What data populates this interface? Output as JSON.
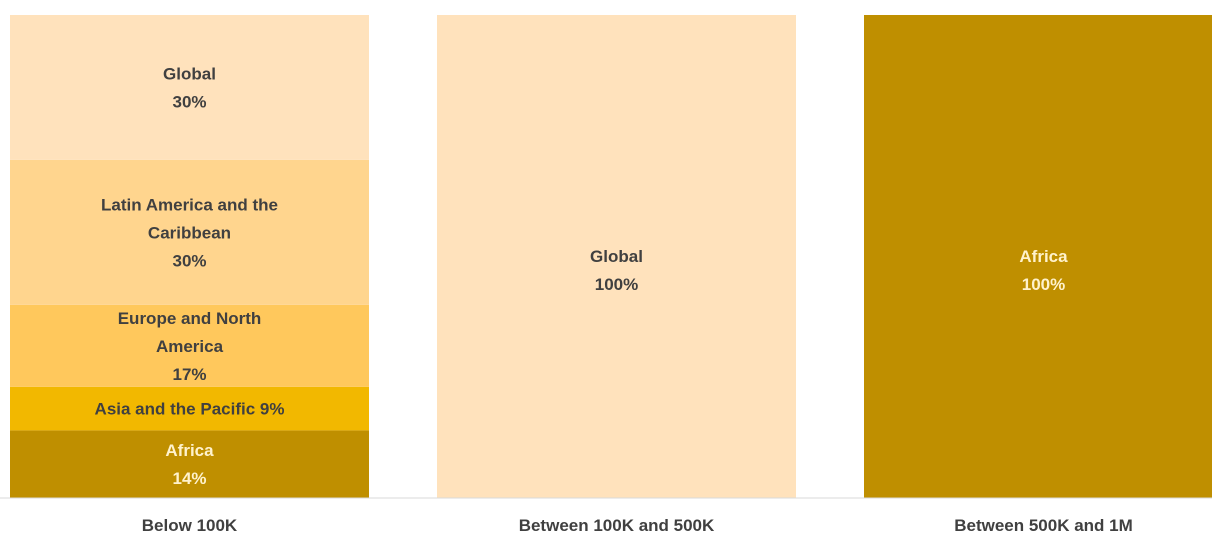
{
  "chart_data": {
    "type": "bar",
    "stacked": true,
    "normalized": true,
    "title": "",
    "xlabel": "",
    "ylabel": "",
    "categories": [
      "Below 100K",
      "Between 100K and 500K",
      "Between 500K and 1M"
    ],
    "series": [
      {
        "name": "Africa",
        "color": "#BF8F00",
        "text_color": "#FFF2CC",
        "values": [
          14,
          0,
          100
        ],
        "labels": [
          "Africa\n14%",
          "",
          "Africa\n100%"
        ]
      },
      {
        "name": "Asia and the Pacific",
        "color": "#F2B800",
        "text_color": "#404040",
        "values": [
          9,
          0,
          0
        ],
        "labels": [
          "Asia and the Pacific 9%",
          "",
          ""
        ]
      },
      {
        "name": "Europe and North America",
        "color": "#FFC85C",
        "text_color": "#404040",
        "values": [
          17,
          0,
          0
        ],
        "labels": [
          "Europe and North\nAmerica\n17%",
          "",
          ""
        ]
      },
      {
        "name": "Latin America and the Caribbean",
        "color": "#FFD58E",
        "text_color": "#404040",
        "values": [
          30,
          0,
          0
        ],
        "labels": [
          "Latin America and the\nCaribbean\n30%",
          "",
          ""
        ]
      },
      {
        "name": "Global",
        "color": "#FFE2BC",
        "text_color": "#404040",
        "values": [
          30,
          100,
          0
        ],
        "labels": [
          "Global\n30%",
          "Global\n100%",
          ""
        ]
      }
    ],
    "grid": false,
    "legend": "none"
  }
}
